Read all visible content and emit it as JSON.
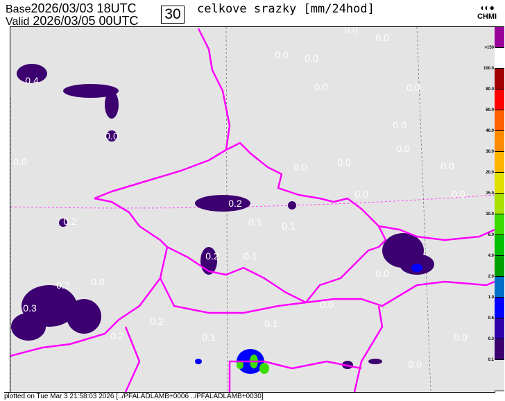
{
  "header": {
    "base_label": "Base",
    "base_time": "2026/03/03 18UTC",
    "valid_label": "Valid",
    "valid_time": "2026/03/05 00UTC",
    "step": "30",
    "title": "celkove srazky [mm/24hod]",
    "logo": "CHMI"
  },
  "legend": {
    "labels": [
      ">150",
      "100.0",
      "80.0",
      "60.0",
      "40.0",
      "30.0",
      "20.0",
      "15.0",
      "10.0",
      "6.0",
      "4.0",
      "2.0",
      "1.0",
      "0.6",
      "0.3",
      "0.1"
    ],
    "colors": [
      "#990099",
      "#ffffff",
      "#a00000",
      "#ff0000",
      "#ff6000",
      "#ff8c00",
      "#ffb400",
      "#e0e000",
      "#a8e000",
      "#3cdc00",
      "#00be00",
      "#00a000",
      "#0070c8",
      "#0000ff",
      "#3000a8",
      "#3c0070",
      "#e4e4e4"
    ]
  },
  "map": {
    "background": "#e4e4e4",
    "border_color": "#ff00ff",
    "values": [
      "0.0",
      "0.0",
      "0.0",
      "0.0",
      "0.0",
      "0.4",
      "0.0",
      "0.0",
      "0.0",
      "0.0",
      "0.0",
      "0.0",
      "0.0",
      "0.0",
      "0.0",
      "0.0",
      "0.2",
      "0.1",
      "0.1",
      "0.2",
      "0.1",
      "0.2",
      "0.2",
      "0.0",
      "0.0",
      "0.1",
      "0.3",
      "0.2",
      "0.2",
      "0.0",
      "0.0",
      "0.1",
      "0.0"
    ]
  },
  "footer": {
    "text": "plotted on Tue Mar  3 21:58:03 2026 [../PFALADLAMB+0006 ../PFALADLAMB+0030]"
  }
}
